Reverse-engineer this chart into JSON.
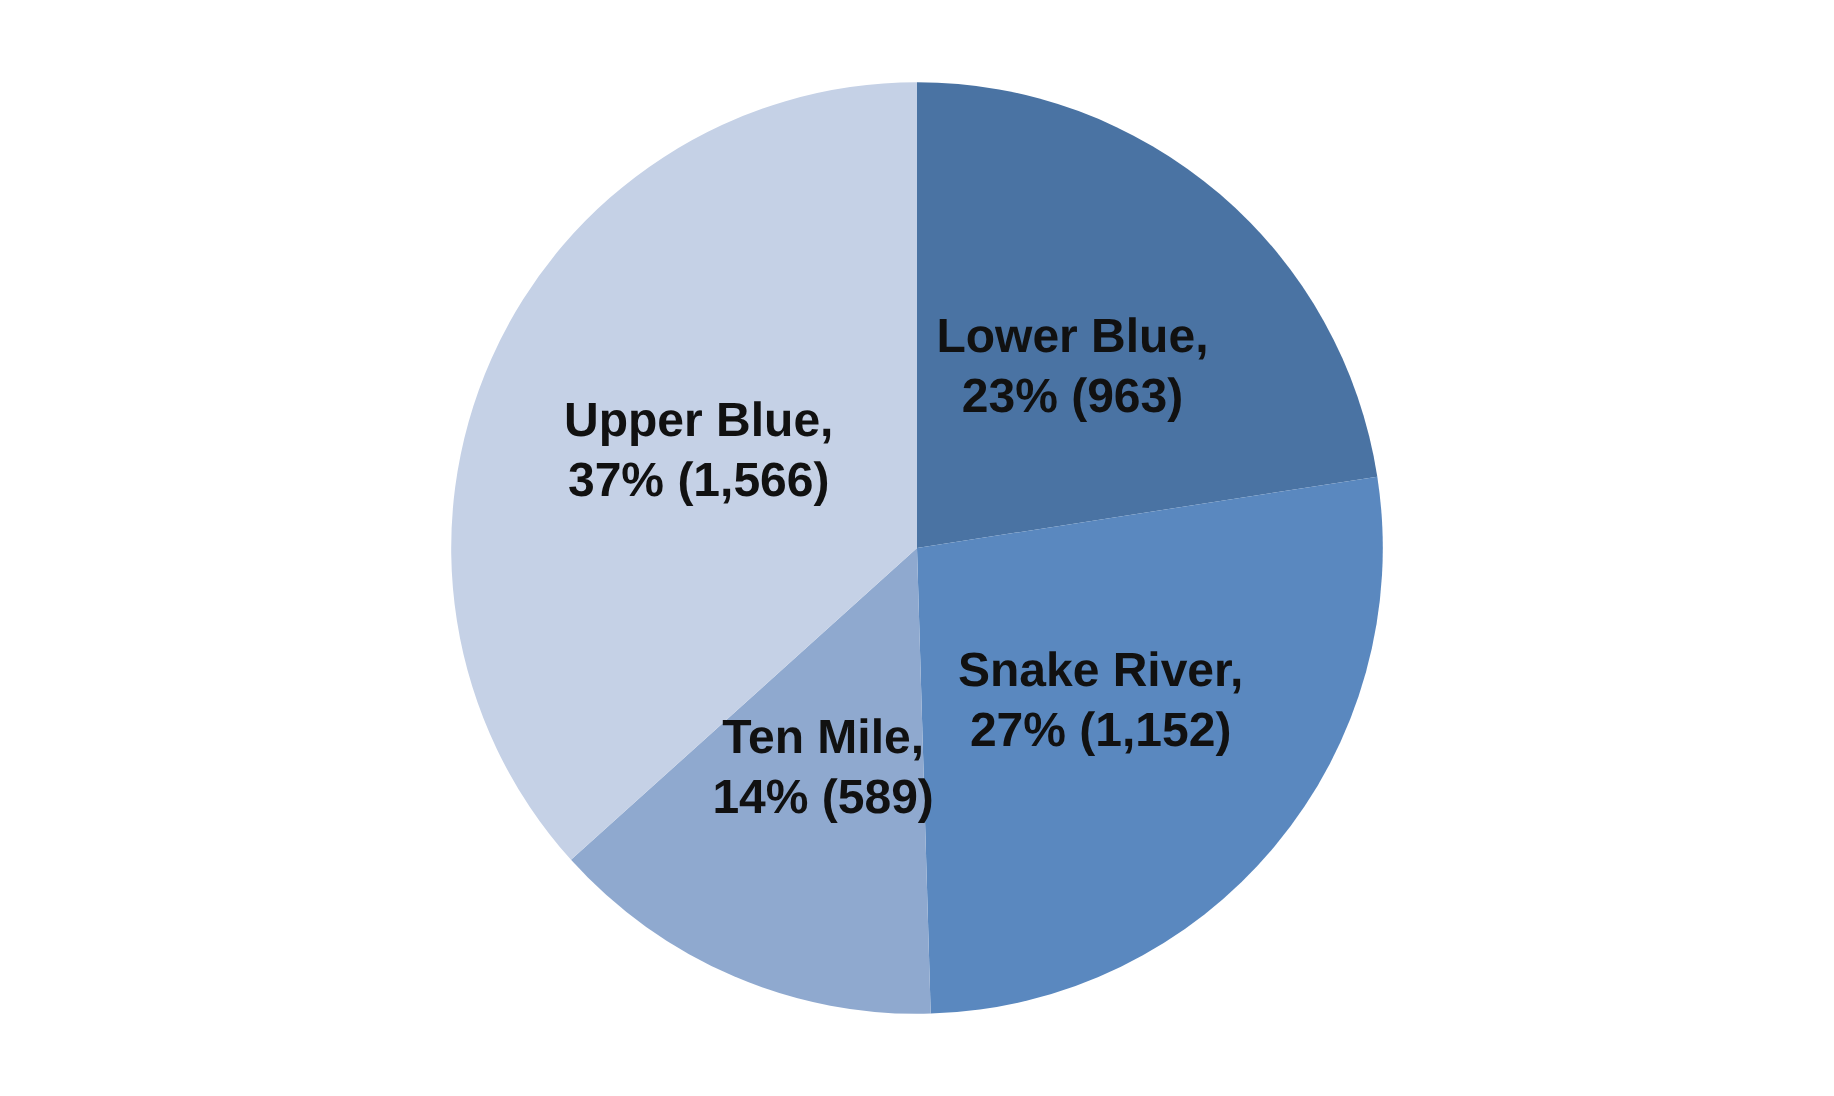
{
  "chart_data": {
    "type": "pie",
    "categories": [
      "Lower Blue",
      "Snake River",
      "Ten Mile",
      "Upper Blue"
    ],
    "values": [
      963,
      1152,
      589,
      1566
    ],
    "value_labels": [
      ", 23% (963)",
      ", 27% (1,152)",
      ", 14% (589)",
      ", 37% (1,566)"
    ],
    "colors": [
      "#4a73a3",
      "#5a88bf",
      "#8fa9cf",
      "#c5d1e6"
    ],
    "legend": false
  }
}
